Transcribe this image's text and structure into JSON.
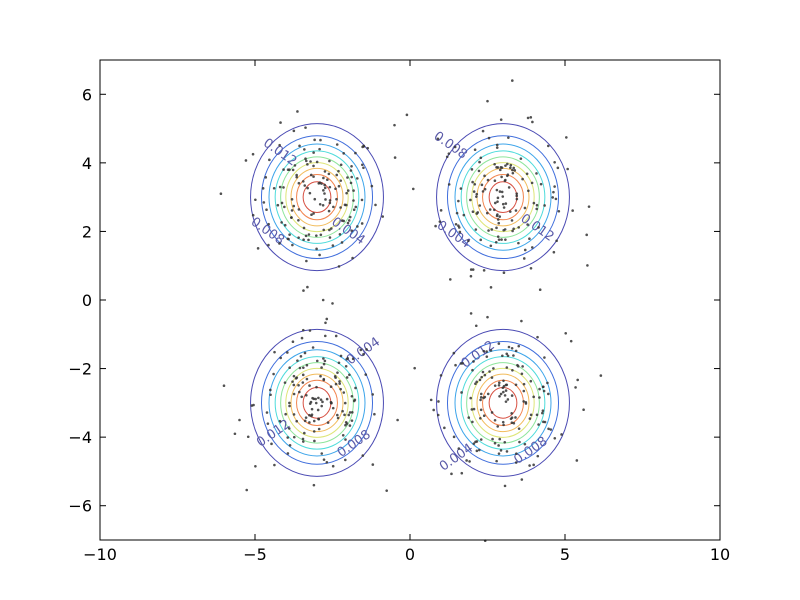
{
  "chart_data": {
    "type": "scatter",
    "subtype": "contour-with-scatter",
    "title": "",
    "xlabel": "",
    "ylabel": "",
    "xlim": [
      -10,
      10
    ],
    "ylim": [
      -7,
      7
    ],
    "x_ticks": [
      -10,
      -5,
      0,
      5,
      10
    ],
    "x_tick_labels": [
      "−10",
      "−5",
      "0",
      "5",
      "10"
    ],
    "y_ticks": [
      -6,
      -4,
      -2,
      0,
      2,
      4,
      6
    ],
    "y_tick_labels": [
      "−6",
      "−4",
      "−2",
      "0",
      "2",
      "4",
      "6"
    ],
    "grid": false,
    "legend": "none",
    "clusters": [
      {
        "center": [
          -3,
          3
        ],
        "sigma": 1.0
      },
      {
        "center": [
          3,
          3
        ],
        "sigma": 1.0
      },
      {
        "center": [
          -3,
          -3
        ],
        "sigma": 1.0
      },
      {
        "center": [
          3,
          -3
        ],
        "sigma": 1.0
      }
    ],
    "contour_levels": [
      0.004,
      0.008,
      0.012,
      0.016,
      0.02,
      0.024,
      0.028,
      0.032,
      0.036
    ],
    "contour_colors": [
      "#2a2aa6",
      "#1f55d6",
      "#1b95e6",
      "#2fd5d5",
      "#7ae08a",
      "#d8e060",
      "#f0b040",
      "#f07030",
      "#d03020"
    ],
    "contour_labels": [
      {
        "text": "0.004",
        "at": [
          -2.0,
          2.0
        ]
      },
      {
        "text": "0.008",
        "at": [
          -4.6,
          2.0
        ]
      },
      {
        "text": "0.012",
        "at": [
          -4.2,
          4.3
        ]
      },
      {
        "text": "0.008",
        "at": [
          1.3,
          4.5
        ]
      },
      {
        "text": "0.004",
        "at": [
          1.4,
          1.9
        ]
      },
      {
        "text": "0.012",
        "at": [
          4.1,
          2.1
        ]
      },
      {
        "text": "0.004",
        "at": [
          -1.5,
          -1.5
        ]
      },
      {
        "text": "0.008",
        "at": [
          -1.8,
          -4.2
        ]
      },
      {
        "text": "0.012",
        "at": [
          -4.4,
          -3.9
        ]
      },
      {
        "text": "0.012",
        "at": [
          2.2,
          -1.6
        ]
      },
      {
        "text": "0.008",
        "at": [
          3.9,
          -4.4
        ]
      },
      {
        "text": "0.004",
        "at": [
          1.5,
          -4.6
        ]
      }
    ],
    "points_per_cluster": 150,
    "outliers": [
      [
        -0.1,
        5.4
      ],
      [
        -0.5,
        5.1
      ],
      [
        3.3,
        6.4
      ],
      [
        2.5,
        5.8
      ],
      [
        -6.1,
        3.1
      ],
      [
        5.7,
        1.9
      ],
      [
        -2.5,
        -0.1
      ],
      [
        -2.8,
        0.0
      ],
      [
        2.5,
        -0.5
      ],
      [
        4.2,
        0.3
      ],
      [
        1.3,
        0.6
      ],
      [
        -1.2,
        -4.8
      ],
      [
        5.2,
        -1.2
      ],
      [
        5.6,
        -3.2
      ],
      [
        -6.0,
        -2.5
      ],
      [
        -3.1,
        -5.4
      ],
      [
        1.0,
        -2.2
      ],
      [
        -0.4,
        -3.5
      ],
      [
        0.9,
        4.7
      ],
      [
        -5.5,
        -3.5
      ]
    ],
    "point_color": "#333333"
  }
}
